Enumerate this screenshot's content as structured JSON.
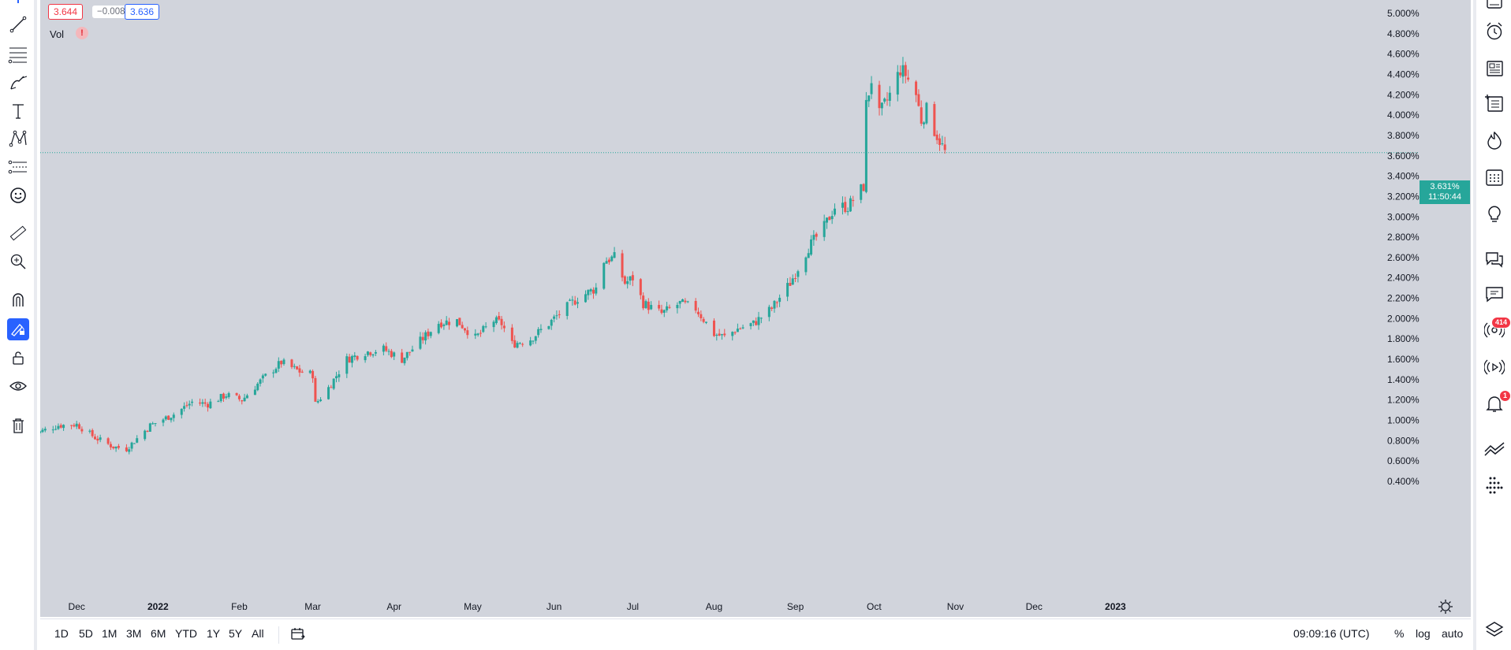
{
  "legend": {
    "open": "3.644",
    "change": "−0.008",
    "close": "3.636",
    "vol_label": "Vol",
    "vol_warning": "!"
  },
  "price_axis": {
    "labels": [
      "5.000%",
      "4.800%",
      "4.600%",
      "4.400%",
      "4.200%",
      "4.000%",
      "3.800%",
      "3.600%",
      "3.400%",
      "3.200%",
      "3.000%",
      "2.800%",
      "2.600%",
      "2.400%",
      "2.200%",
      "2.000%",
      "1.800%",
      "1.600%",
      "1.400%",
      "1.200%",
      "1.000%",
      "0.800%",
      "0.600%",
      "0.400%"
    ]
  },
  "time_axis": {
    "labels": [
      "Dec",
      "2022",
      "Feb",
      "Mar",
      "Apr",
      "May",
      "Jun",
      "Jul",
      "Aug",
      "Sep",
      "Oct",
      "Nov",
      "Dec",
      "2023"
    ]
  },
  "last_price": {
    "value": "3.631%",
    "countdown": "11:50:44"
  },
  "bottom_bar": {
    "ranges": [
      "1D",
      "5D",
      "1M",
      "3M",
      "6M",
      "YTD",
      "1Y",
      "5Y",
      "All"
    ],
    "clock": "09:09:16 (UTC)",
    "percent": "%",
    "log": "log",
    "auto": "auto"
  },
  "left_toolbar": {
    "tools": [
      "cursor-icon",
      "trend-line-icon",
      "fib-retracement-icon",
      "brush-icon",
      "text-icon",
      "pattern-icon",
      "forecast-icon",
      "emoji-icon",
      "ruler-icon",
      "zoom-in-icon",
      "magnet-icon",
      "stay-in-drawing-mode-icon",
      "lock-icon",
      "eye-icon",
      "trash-icon"
    ]
  },
  "right_toolbar": {
    "tools": [
      "watchlist-icon",
      "alarm-clock-icon",
      "news-icon",
      "add-list-icon",
      "hotlist-icon",
      "calendar-icon",
      "ideas-icon",
      "chat-icon",
      "messages-icon",
      "streams-icon",
      "broadcast-icon",
      "notifications-icon",
      "trading-icon",
      "object-tree-icon",
      "layers-icon"
    ],
    "badges": {
      "streams": "414",
      "notifications": "1"
    }
  },
  "colors": {
    "up": "#26a69a",
    "down": "#ef5350",
    "chart_bg": "#d1d4dc",
    "accent": "#2962ff"
  },
  "chart_data": {
    "type": "candlestick",
    "yaxis": {
      "min": 0.4,
      "max": 5.0,
      "unit": "%"
    },
    "x_range": [
      "2021-11-15",
      "2023-01-06"
    ],
    "last_value": 3.631,
    "close_path": [
      [
        "2021-11-15",
        0.87
      ],
      [
        "2021-11-24",
        0.95
      ],
      [
        "2021-12-01",
        0.96
      ],
      [
        "2021-12-08",
        0.83
      ],
      [
        "2021-12-15",
        0.74
      ],
      [
        "2021-12-20",
        0.72
      ],
      [
        "2021-12-29",
        0.95
      ],
      [
        "2022-01-07",
        1.06
      ],
      [
        "2022-01-14",
        1.18
      ],
      [
        "2022-01-20",
        1.16
      ],
      [
        "2022-01-27",
        1.25
      ],
      [
        "2022-02-02",
        1.2
      ],
      [
        "2022-02-10",
        1.41
      ],
      [
        "2022-02-17",
        1.57
      ],
      [
        "2022-02-24",
        1.48
      ],
      [
        "2022-03-01",
        1.45
      ],
      [
        "2022-03-02",
        1.16
      ],
      [
        "2022-03-07",
        1.32
      ],
      [
        "2022-03-14",
        1.6
      ],
      [
        "2022-03-21",
        1.67
      ],
      [
        "2022-03-28",
        1.7
      ],
      [
        "2022-04-04",
        1.6
      ],
      [
        "2022-04-11",
        1.78
      ],
      [
        "2022-04-18",
        1.96
      ],
      [
        "2022-04-25",
        1.98
      ],
      [
        "2022-05-02",
        1.81
      ],
      [
        "2022-05-09",
        1.98
      ],
      [
        "2022-05-12",
        1.95
      ],
      [
        "2022-05-16",
        1.75
      ],
      [
        "2022-05-23",
        1.8
      ],
      [
        "2022-05-30",
        1.95
      ],
      [
        "2022-06-03",
        2.05
      ],
      [
        "2022-06-10",
        2.2
      ],
      [
        "2022-06-17",
        2.3
      ],
      [
        "2022-06-20",
        2.57
      ],
      [
        "2022-06-24",
        2.6
      ],
      [
        "2022-06-28",
        2.35
      ],
      [
        "2022-07-01",
        2.4
      ],
      [
        "2022-07-05",
        2.15
      ],
      [
        "2022-07-12",
        2.05
      ],
      [
        "2022-07-19",
        2.15
      ],
      [
        "2022-07-25",
        2.1
      ],
      [
        "2022-08-01",
        1.85
      ],
      [
        "2022-08-05",
        1.82
      ],
      [
        "2022-08-10",
        1.9
      ],
      [
        "2022-08-16",
        1.95
      ],
      [
        "2022-08-23",
        2.1
      ],
      [
        "2022-08-30",
        2.35
      ],
      [
        "2022-09-06",
        2.7
      ],
      [
        "2022-09-12",
        2.9
      ],
      [
        "2022-09-16",
        3.1
      ],
      [
        "2022-09-21",
        3.1
      ],
      [
        "2022-09-27",
        3.3
      ],
      [
        "2022-09-28",
        4.1
      ],
      [
        "2022-09-30",
        4.35
      ],
      [
        "2022-10-03",
        4.0
      ],
      [
        "2022-10-07",
        4.2
      ],
      [
        "2022-10-11",
        4.45
      ],
      [
        "2022-10-13",
        4.4
      ],
      [
        "2022-10-17",
        4.2
      ],
      [
        "2022-10-19",
        3.95
      ],
      [
        "2022-10-21",
        4.05
      ],
      [
        "2022-10-24",
        3.85
      ],
      [
        "2022-10-26",
        3.75
      ],
      [
        "2022-10-28",
        3.636
      ]
    ]
  }
}
